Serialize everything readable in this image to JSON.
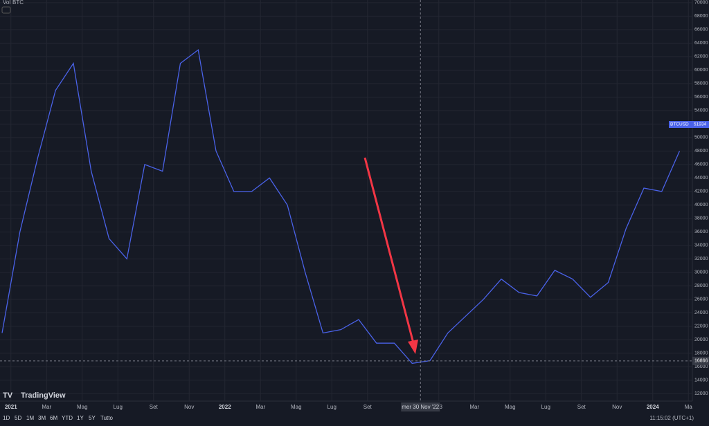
{
  "chart_data": {
    "type": "line",
    "legend": {
      "volume": "Vol",
      "symbol": "BTC"
    },
    "x": [
      "2020-12",
      "2021-01",
      "2021-02",
      "2021-03",
      "2021-04",
      "2021-05",
      "2021-06",
      "2021-07",
      "2021-08",
      "2021-09",
      "2021-10",
      "2021-11",
      "2021-12",
      "2022-01",
      "2022-02",
      "2022-03",
      "2022-04",
      "2022-05",
      "2022-06",
      "2022-07",
      "2022-08",
      "2022-09",
      "2022-10",
      "2022-11",
      "2022-12",
      "2023-01",
      "2023-02",
      "2023-03",
      "2023-04",
      "2023-05",
      "2023-06",
      "2023-07",
      "2023-08",
      "2023-09",
      "2023-10",
      "2023-11",
      "2023-12",
      "2024-01",
      "2024-02"
    ],
    "series": [
      {
        "name": "BTCUSD",
        "color": "#4a62e8",
        "values": [
          21000,
          36000,
          47000,
          57000,
          61000,
          45000,
          35000,
          32000,
          46000,
          45000,
          61000,
          63000,
          48000,
          42000,
          42000,
          44000,
          40000,
          30000,
          21000,
          21500,
          23000,
          19500,
          19500,
          16500,
          16900,
          21000,
          23500,
          26000,
          29000,
          27000,
          26500,
          30300,
          29000,
          26300,
          28500,
          36500,
          42500,
          42000,
          48000
        ]
      }
    ],
    "last_price": {
      "name": "BTCUSD",
      "value": 51934
    },
    "crosshair": {
      "x": "2022-11",
      "label": "mer 30 Nov '22",
      "value": 16866
    },
    "ylim": [
      10900,
      70400
    ],
    "yticks": [
      12000,
      14000,
      16000,
      18000,
      20000,
      22000,
      24000,
      26000,
      28000,
      30000,
      32000,
      34000,
      36000,
      38000,
      40000,
      42000,
      44000,
      46000,
      48000,
      50000,
      52000,
      54000,
      56000,
      58000,
      60000,
      62000,
      64000,
      66000,
      68000,
      70000
    ],
    "xticks": [
      {
        "value": "2021-01",
        "label": "2021"
      },
      {
        "value": "2021-03",
        "label": "Mar"
      },
      {
        "value": "2021-05",
        "label": "Mag"
      },
      {
        "value": "2021-07",
        "label": "Lug"
      },
      {
        "value": "2021-09",
        "label": "Set"
      },
      {
        "value": "2021-11",
        "label": "Nov"
      },
      {
        "value": "2022-01",
        "label": "2022"
      },
      {
        "value": "2022-03",
        "label": "Mar"
      },
      {
        "value": "2022-05",
        "label": "Mag"
      },
      {
        "value": "2022-07",
        "label": "Lug"
      },
      {
        "value": "2022-09",
        "label": "Set"
      },
      {
        "value": "2023-01",
        "label": "'23"
      },
      {
        "value": "2023-03",
        "label": "Mar"
      },
      {
        "value": "2023-05",
        "label": "Mag"
      },
      {
        "value": "2023-07",
        "label": "Lug"
      },
      {
        "value": "2023-09",
        "label": "Set"
      },
      {
        "value": "2023-11",
        "label": "Nov"
      },
      {
        "value": "2024-01",
        "label": "2024"
      },
      {
        "value": "2024-03",
        "label": "Ma"
      }
    ],
    "grid": true
  },
  "toolbar": {
    "ranges": [
      "1D",
      "5D",
      "1M",
      "3M",
      "6M",
      "YTD",
      "1Y",
      "5Y",
      "Tutto"
    ],
    "clock": "11:15:02 (UTC+1)",
    "brand": "TradingView"
  }
}
